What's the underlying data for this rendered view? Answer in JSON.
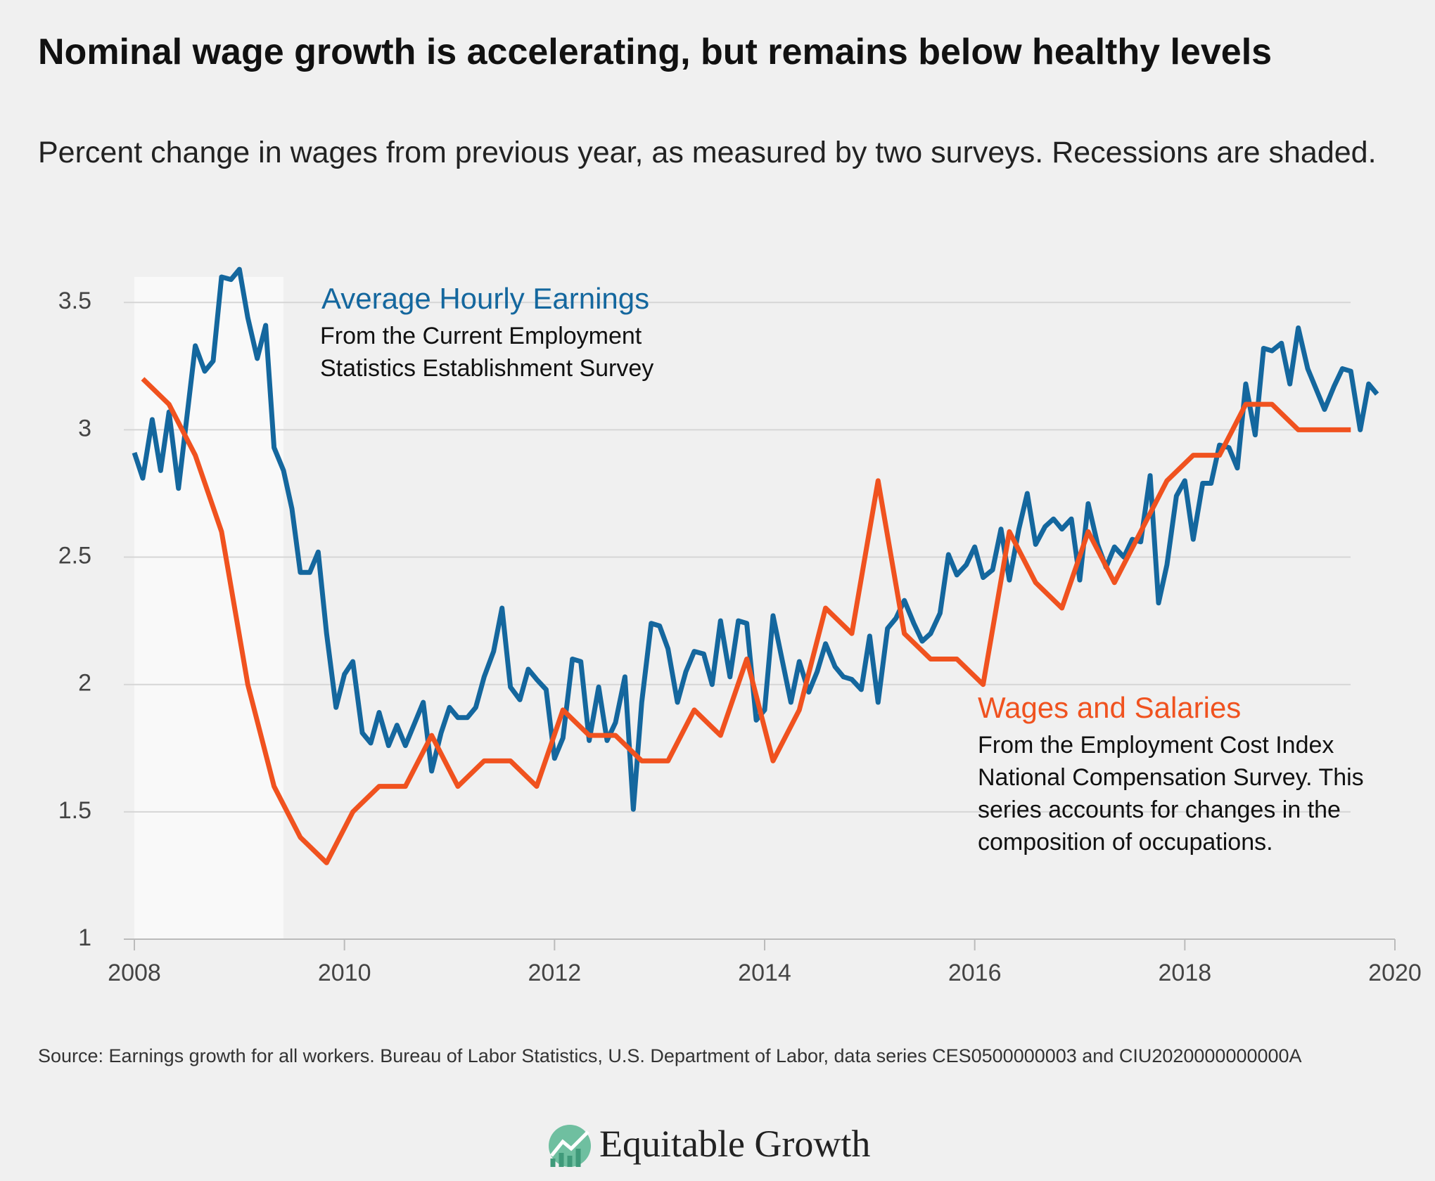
{
  "chart_data": {
    "type": "line",
    "title": "Nominal wage growth is accelerating, but remains below healthy levels",
    "subtitle": "Percent change in wages from previous year, as measured by two surveys. Recessions are shaded.",
    "source": "Source: Earnings growth for all workers. Bureau of Labor Statistics, U.S. Department of Labor, data series CES0500000003 and CIU2020000000000A",
    "brand": "Equitable Growth",
    "xlim": [
      2008,
      2020
    ],
    "xticks": [
      2008,
      2010,
      2012,
      2014,
      2016,
      2018,
      2020
    ],
    "ylim": [
      1,
      3.6
    ],
    "yticks": [
      1,
      1.5,
      2,
      2.5,
      3,
      3.5
    ],
    "grid": true,
    "recession": [
      2008,
      2009.42
    ],
    "series": [
      {
        "name": "Average Hourly Earnings",
        "note": "From the Current Employment Statistics Establishment Survey",
        "color": "#14679e",
        "x": [
          2008,
          2008.08,
          2008.17,
          2008.25,
          2008.33,
          2008.42,
          2008.5,
          2008.58,
          2008.67,
          2008.75,
          2008.83,
          2008.92,
          2009,
          2009.08,
          2009.17,
          2009.25,
          2009.33,
          2009.42,
          2009.5,
          2009.58,
          2009.67,
          2009.75,
          2009.83,
          2009.92,
          2010,
          2010.08,
          2010.17,
          2010.25,
          2010.33,
          2010.42,
          2010.5,
          2010.58,
          2010.67,
          2010.75,
          2010.83,
          2010.92,
          2011,
          2011.08,
          2011.17,
          2011.25,
          2011.33,
          2011.42,
          2011.5,
          2011.58,
          2011.67,
          2011.75,
          2011.83,
          2011.92,
          2012,
          2012.08,
          2012.17,
          2012.25,
          2012.33,
          2012.42,
          2012.5,
          2012.58,
          2012.67,
          2012.75,
          2012.83,
          2012.92,
          2013,
          2013.08,
          2013.17,
          2013.25,
          2013.33,
          2013.42,
          2013.5,
          2013.58,
          2013.67,
          2013.75,
          2013.83,
          2013.92,
          2014,
          2014.08,
          2014.17,
          2014.25,
          2014.33,
          2014.42,
          2014.5,
          2014.58,
          2014.67,
          2014.75,
          2014.83,
          2014.92,
          2015,
          2015.08,
          2015.17,
          2015.25,
          2015.33,
          2015.42,
          2015.5,
          2015.58,
          2015.67,
          2015.75,
          2015.83,
          2015.92,
          2016,
          2016.08,
          2016.17,
          2016.25,
          2016.33,
          2016.42,
          2016.5,
          2016.58,
          2016.67,
          2016.75,
          2016.83,
          2016.92,
          2017,
          2017.08,
          2017.17,
          2017.25,
          2017.33,
          2017.42,
          2017.5,
          2017.58,
          2017.67,
          2017.75,
          2017.83,
          2017.92,
          2018,
          2018.08,
          2018.17,
          2018.25,
          2018.33,
          2018.42,
          2018.5,
          2018.58,
          2018.67,
          2018.75,
          2018.83,
          2018.92,
          2019,
          2019.08,
          2019.17,
          2019.25,
          2019.33,
          2019.42,
          2019.5,
          2019.58,
          2019.67,
          2019.75,
          2019.83
        ],
        "values": [
          2.91,
          2.81,
          3.04,
          2.84,
          3.07,
          2.77,
          3.05,
          3.33,
          3.23,
          3.27,
          3.6,
          3.59,
          3.63,
          3.44,
          3.28,
          3.41,
          2.93,
          2.84,
          2.69,
          2.44,
          2.44,
          2.52,
          2.2,
          1.91,
          2.04,
          2.09,
          1.81,
          1.77,
          1.89,
          1.76,
          1.84,
          1.76,
          1.85,
          1.93,
          1.66,
          1.81,
          1.91,
          1.87,
          1.87,
          1.91,
          2.03,
          2.13,
          2.3,
          1.99,
          1.94,
          2.06,
          2.02,
          1.98,
          1.71,
          1.79,
          2.1,
          2.09,
          1.78,
          1.99,
          1.78,
          1.85,
          2.03,
          1.51,
          1.93,
          2.24,
          2.23,
          2.14,
          1.93,
          2.05,
          2.13,
          2.12,
          2,
          2.25,
          2.03,
          2.25,
          2.24,
          1.86,
          1.9,
          2.27,
          2.09,
          1.93,
          2.09,
          1.97,
          2.05,
          2.16,
          2.07,
          2.03,
          2.02,
          1.98,
          2.19,
          1.93,
          2.22,
          2.26,
          2.33,
          2.24,
          2.17,
          2.2,
          2.28,
          2.51,
          2.43,
          2.47,
          2.54,
          2.42,
          2.45,
          2.61,
          2.41,
          2.61,
          2.75,
          2.55,
          2.62,
          2.65,
          2.61,
          2.65,
          2.41,
          2.71,
          2.55,
          2.46,
          2.54,
          2.5,
          2.57,
          2.56,
          2.82,
          2.32,
          2.47,
          2.74,
          2.8,
          2.57,
          2.79,
          2.79,
          2.94,
          2.93,
          2.85,
          3.18,
          2.98,
          3.32,
          3.31,
          3.34,
          3.18,
          3.4,
          3.24,
          3.16,
          3.08,
          3.17,
          3.24,
          3.23,
          3,
          3.18,
          3.14
        ]
      },
      {
        "name": "Wages and Salaries",
        "note": "From the Employment Cost Index National Compensation Survey. This series accounts for changes in the composition of occupations.",
        "color": "#f0521f",
        "x": [
          2008.08,
          2008.33,
          2008.58,
          2008.83,
          2009.08,
          2009.33,
          2009.58,
          2009.83,
          2010.08,
          2010.33,
          2010.58,
          2010.83,
          2011.08,
          2011.33,
          2011.58,
          2011.83,
          2012.08,
          2012.33,
          2012.58,
          2012.83,
          2013.08,
          2013.33,
          2013.58,
          2013.83,
          2014.08,
          2014.33,
          2014.58,
          2014.83,
          2015.08,
          2015.33,
          2015.58,
          2015.83,
          2016.08,
          2016.33,
          2016.58,
          2016.83,
          2017.08,
          2017.33,
          2017.58,
          2017.83,
          2018.08,
          2018.33,
          2018.58,
          2018.83,
          2019.08,
          2019.33,
          2019.58
        ],
        "values": [
          3.2,
          3.1,
          2.9,
          2.6,
          2,
          1.6,
          1.4,
          1.3,
          1.5,
          1.6,
          1.6,
          1.8,
          1.6,
          1.7,
          1.7,
          1.6,
          1.9,
          1.8,
          1.8,
          1.7,
          1.7,
          1.9,
          1.8,
          2.1,
          1.7,
          1.9,
          2.3,
          2.2,
          2.8,
          2.2,
          2.1,
          2.1,
          2,
          2.6,
          2.4,
          2.3,
          2.6,
          2.4,
          2.6,
          2.8,
          2.9,
          2.9,
          3.1,
          3.1,
          3,
          3,
          3
        ]
      }
    ]
  }
}
